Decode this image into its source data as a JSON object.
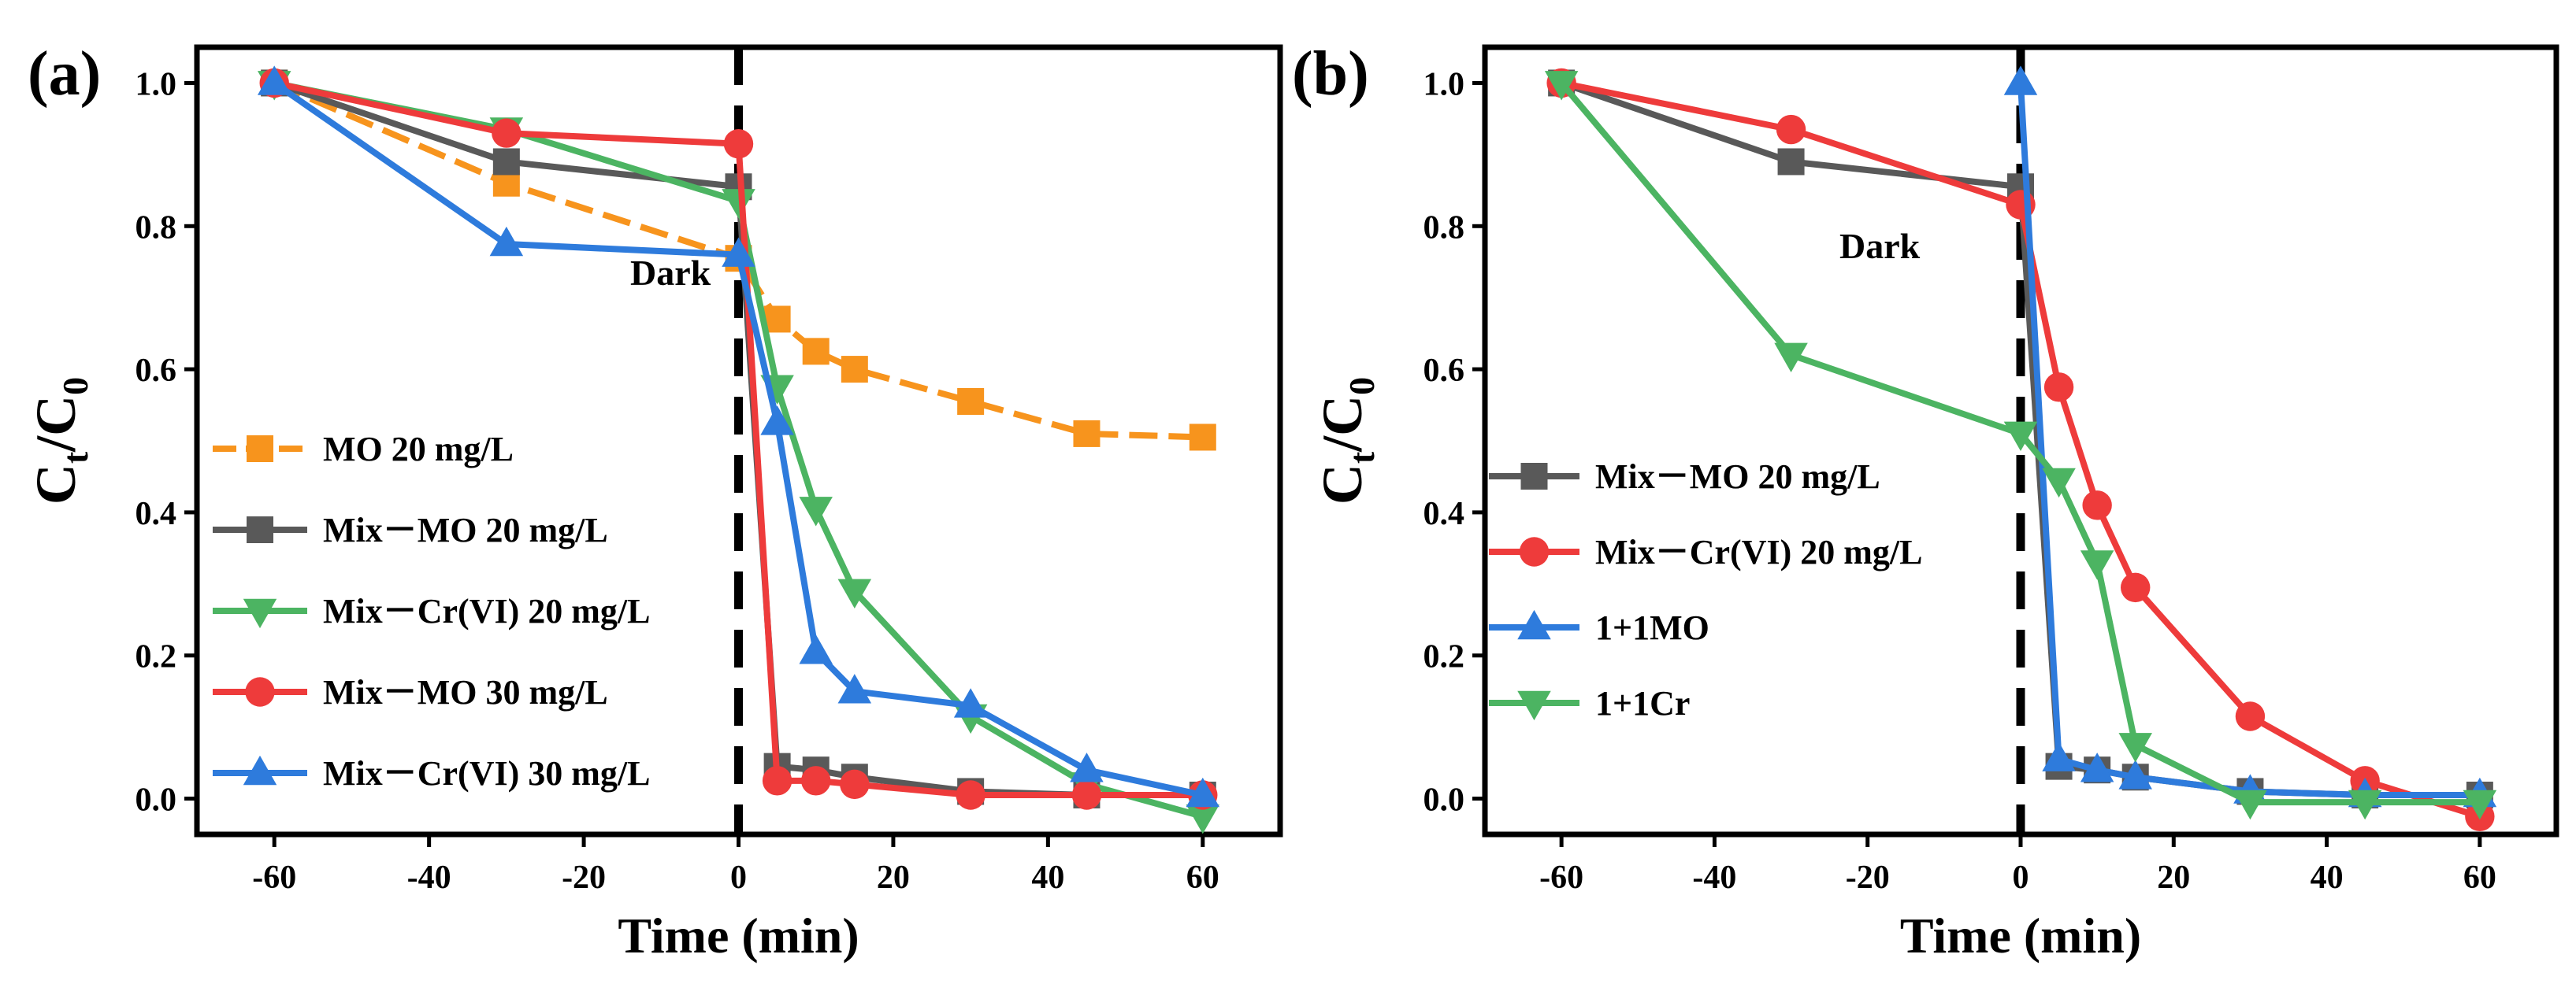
{
  "chart_data": [
    {
      "panel": "(a)",
      "type": "line",
      "xlabel": "Time (min)",
      "ylabel_main": "C",
      "ylabel_sub1": "t",
      "ylabel_mid": "/C",
      "ylabel_sub2": "0",
      "xlim": [
        -70,
        70
      ],
      "ylim": [
        -0.05,
        1.05
      ],
      "xticks": [
        -60,
        -40,
        -20,
        0,
        20,
        40,
        60
      ],
      "xtick_labels": [
        "-60",
        "-40",
        "-20",
        "0",
        "20",
        "40",
        "60"
      ],
      "yticks": [
        0.0,
        0.2,
        0.4,
        0.6,
        0.8,
        1.0
      ],
      "ytick_labels": [
        "0.0",
        "0.2",
        "0.4",
        "0.6",
        "0.8",
        "1.0"
      ],
      "annotation": "Dark",
      "divider_x": 0,
      "legend_position": "left",
      "series": [
        {
          "name": "MO 20 mg/L",
          "color": "#f7941d",
          "marker": "square",
          "dashed": true,
          "x": [
            -60,
            -30,
            0,
            5,
            10,
            15,
            30,
            45,
            60
          ],
          "y": [
            1.0,
            0.86,
            0.755,
            0.67,
            0.625,
            0.6,
            0.555,
            0.51,
            0.505
          ]
        },
        {
          "name": "Mix－MO 20 mg/L",
          "color": "#595959",
          "marker": "square",
          "dashed": false,
          "x": [
            -60,
            -30,
            0,
            5,
            10,
            15,
            30,
            45,
            60
          ],
          "y": [
            1.0,
            0.89,
            0.855,
            0.045,
            0.04,
            0.03,
            0.01,
            0.005,
            0.005
          ]
        },
        {
          "name": "Mix－Cr(VI) 20 mg/L",
          "color": "#4cb462",
          "marker": "triangle-down",
          "dashed": false,
          "x": [
            -60,
            -30,
            0,
            5,
            10,
            15,
            30,
            45,
            60
          ],
          "y": [
            1.0,
            0.935,
            0.835,
            0.575,
            0.405,
            0.29,
            0.115,
            0.02,
            -0.025
          ]
        },
        {
          "name": "Mix－MO 30 mg/L",
          "color": "#ee3b3b",
          "marker": "circle",
          "dashed": false,
          "x": [
            -60,
            -30,
            0,
            5,
            10,
            15,
            30,
            45,
            60
          ],
          "y": [
            1.0,
            0.93,
            0.915,
            0.025,
            0.025,
            0.02,
            0.005,
            0.005,
            0.005
          ]
        },
        {
          "name": "Mix－Cr(VI) 30 mg/L",
          "color": "#2e7bdc",
          "marker": "triangle-up",
          "dashed": false,
          "x": [
            -60,
            -30,
            0,
            5,
            10,
            15,
            30,
            45,
            60
          ],
          "y": [
            1.0,
            0.775,
            0.76,
            0.525,
            0.205,
            0.15,
            0.13,
            0.04,
            0.005
          ]
        }
      ]
    },
    {
      "panel": "(b)",
      "type": "line",
      "xlabel": "Time (min)",
      "ylabel_main": "C",
      "ylabel_sub1": "t",
      "ylabel_mid": "/C",
      "ylabel_sub2": "0",
      "xlim": [
        -70,
        70
      ],
      "ylim": [
        -0.05,
        1.05
      ],
      "xticks": [
        -60,
        -40,
        -20,
        0,
        20,
        40,
        60
      ],
      "xtick_labels": [
        "-60",
        "-40",
        "-20",
        "0",
        "20",
        "40",
        "60"
      ],
      "yticks": [
        0.0,
        0.2,
        0.4,
        0.6,
        0.8,
        1.0
      ],
      "ytick_labels": [
        "0.0",
        "0.2",
        "0.4",
        "0.6",
        "0.8",
        "1.0"
      ],
      "annotation": "Dark",
      "divider_x": 0,
      "legend_position": "left",
      "series": [
        {
          "name": "Mix－MO 20 mg/L",
          "color": "#595959",
          "marker": "square",
          "dashed": false,
          "x": [
            -60,
            -30,
            0,
            5,
            10,
            15,
            30,
            45,
            60
          ],
          "y": [
            1.0,
            0.89,
            0.855,
            0.045,
            0.04,
            0.03,
            0.01,
            0.005,
            0.005
          ]
        },
        {
          "name": "Mix－Cr(VI) 20 mg/L",
          "color": "#ee3b3b",
          "marker": "circle",
          "dashed": false,
          "x": [
            -60,
            -30,
            0,
            5,
            10,
            15,
            30,
            45,
            60
          ],
          "y": [
            1.0,
            0.935,
            0.83,
            0.575,
            0.41,
            0.295,
            0.115,
            0.025,
            -0.025
          ]
        },
        {
          "name": "1+1MO",
          "color": "#2e7bdc",
          "marker": "triangle-up",
          "dashed": false,
          "x": [
            0,
            5,
            10,
            15,
            30,
            45,
            60
          ],
          "y": [
            1.0,
            0.055,
            0.04,
            0.03,
            0.01,
            0.005,
            0.005
          ]
        },
        {
          "name": "1+1Cr",
          "color": "#4cb462",
          "marker": "triangle-down",
          "dashed": false,
          "x": [
            -60,
            -30,
            0,
            5,
            10,
            15,
            30,
            45,
            60
          ],
          "y": [
            1.0,
            0.62,
            0.51,
            0.445,
            0.33,
            0.075,
            -0.005,
            -0.005,
            -0.005
          ]
        }
      ]
    }
  ]
}
